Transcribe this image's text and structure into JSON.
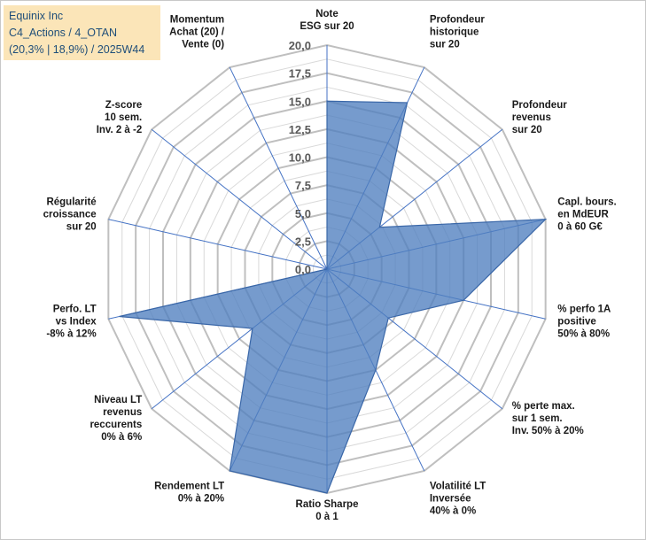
{
  "header": {
    "line1": "Equinix Inc",
    "line2": "C4_Actions / 4_OTAN",
    "line3": "(20,3% | 18,9%) / 2025W44"
  },
  "chart_data": {
    "type": "radar",
    "title": "Equinix Inc",
    "rlim": [
      0,
      20
    ],
    "ticks": [
      "0,0",
      "2,5",
      "5,0",
      "7,5",
      "10,0",
      "12,5",
      "15,0",
      "17,5",
      "20,0"
    ],
    "categories": [
      [
        "Note",
        "ESG sur 20"
      ],
      [
        "Profondeur",
        "historique",
        "sur 20"
      ],
      [
        "Profondeur",
        "revenus",
        "sur 20"
      ],
      [
        "Capl. bours.",
        "en MdEUR",
        "0 à 60 G€"
      ],
      [
        "% perfo 1A",
        "positive",
        "50% à 80%"
      ],
      [
        "% perte max.",
        "sur 1 sem.",
        "Inv. 50% à 20%"
      ],
      [
        "Volatilité LT",
        "Inversée",
        "40% à 0%"
      ],
      [
        "Ratio Sharpe",
        "0 à 1"
      ],
      [
        "Rendement LT",
        "0% à 20%"
      ],
      [
        "Niveau LT",
        "revenus",
        "reccurents",
        "0% à 6%"
      ],
      [
        "Perfo. LT",
        "vs Index",
        "-8% à 12%"
      ],
      [
        "Régularité",
        "croissance",
        "sur 20"
      ],
      [
        "Z-score",
        "10 sem.",
        "Inv. 2 à -2"
      ],
      [
        "Momentum",
        "Achat (20) /",
        "Vente (0)"
      ]
    ],
    "series": [
      {
        "name": "Equinix Inc",
        "color": "#4f7fbf",
        "values": [
          15,
          16.5,
          6,
          20,
          12.5,
          7,
          10,
          20,
          20,
          8.5,
          19,
          0,
          0,
          0
        ]
      }
    ],
    "grid": true
  }
}
